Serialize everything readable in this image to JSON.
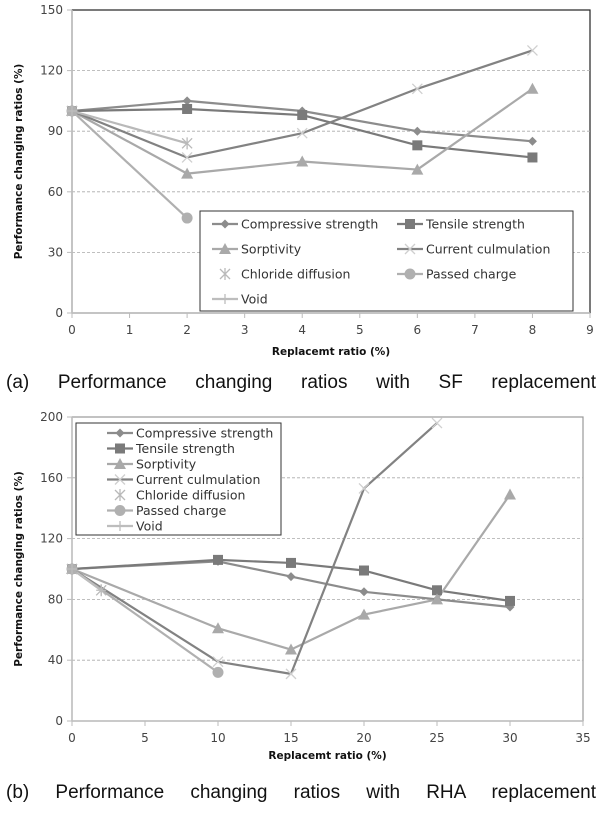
{
  "chart_data": [
    {
      "type": "line",
      "title": "",
      "caption": "(a) Performance changing ratios with SF replacement",
      "xlabel": "Replacemt ratio (%)",
      "ylabel": "Performance changing ratios (%)",
      "xlim": [
        0,
        9
      ],
      "ylim": [
        0,
        150
      ],
      "xticks": [
        0,
        1,
        2,
        3,
        4,
        5,
        6,
        7,
        8,
        9
      ],
      "yticks": [
        0,
        30,
        60,
        90,
        120,
        150
      ],
      "grid": "horizontal-dashed",
      "legend": "bottom-right, 2 columns",
      "series": [
        {
          "name": "Compressive strength",
          "marker": "diamond",
          "color": "#8c8c8c",
          "x": [
            0,
            2,
            4,
            6,
            8
          ],
          "y": [
            100,
            105,
            100,
            90,
            85
          ]
        },
        {
          "name": "Tensile strength",
          "marker": "square",
          "color": "#7a7a7a",
          "x": [
            0,
            2,
            4,
            6,
            8
          ],
          "y": [
            100,
            101,
            98,
            83,
            77
          ]
        },
        {
          "name": "Sorptivity",
          "marker": "triangle",
          "color": "#a9a9a9",
          "x": [
            0,
            2,
            4,
            6,
            8
          ],
          "y": [
            100,
            69,
            75,
            71,
            111
          ]
        },
        {
          "name": "Current culmulation",
          "marker": "x",
          "color": "#828282",
          "x": [
            0,
            2,
            4,
            6,
            8
          ],
          "y": [
            100,
            77,
            89,
            111,
            130
          ]
        },
        {
          "name": "Chloride diffusion",
          "marker": "star",
          "color": "#b9b9b9",
          "x": [
            0,
            2
          ],
          "y": [
            100,
            84
          ]
        },
        {
          "name": "Passed charge",
          "marker": "circle",
          "color": "#b0b0b0",
          "x": [
            0,
            2
          ],
          "y": [
            100,
            47
          ]
        },
        {
          "name": "Void",
          "marker": "plus",
          "color": "#bdbdbd",
          "x": [
            0
          ],
          "y": [
            100
          ]
        }
      ]
    },
    {
      "type": "line",
      "title": "",
      "caption": "(b) Performance changing ratios with RHA replacement",
      "xlabel": "Replacemt ratio (%)",
      "ylabel": "Performance changing ratios (%)",
      "xlim": [
        0,
        35
      ],
      "ylim": [
        0,
        200
      ],
      "xticks": [
        0,
        5,
        10,
        15,
        20,
        25,
        30,
        35
      ],
      "yticks": [
        0,
        40,
        80,
        120,
        160,
        200
      ],
      "grid": "horizontal-dashed",
      "legend": "top-left, 1 column",
      "series": [
        {
          "name": "Compressive strength",
          "marker": "diamond",
          "color": "#8c8c8c",
          "x": [
            0,
            10,
            15,
            20,
            25,
            30
          ],
          "y": [
            100,
            105,
            95,
            85,
            80,
            75
          ]
        },
        {
          "name": "Tensile strength",
          "marker": "square",
          "color": "#7a7a7a",
          "x": [
            0,
            10,
            15,
            20,
            25,
            30
          ],
          "y": [
            100,
            106,
            104,
            99,
            86,
            79
          ]
        },
        {
          "name": "Sorptivity",
          "marker": "triangle",
          "color": "#a9a9a9",
          "x": [
            0,
            10,
            15,
            20,
            25,
            30
          ],
          "y": [
            100,
            61,
            47,
            70,
            80,
            149
          ]
        },
        {
          "name": "Current culmulation",
          "marker": "x",
          "color": "#828282",
          "x": [
            0,
            10,
            15,
            20,
            25
          ],
          "y": [
            100,
            39,
            31,
            153,
            196
          ]
        },
        {
          "name": "Chloride diffusion",
          "marker": "star",
          "color": "#b9b9b9",
          "x": [
            0,
            2
          ],
          "y": [
            100,
            86
          ]
        },
        {
          "name": "Passed charge",
          "marker": "circle",
          "color": "#b0b0b0",
          "x": [
            0,
            10
          ],
          "y": [
            100,
            32
          ]
        },
        {
          "name": "Void",
          "marker": "plus",
          "color": "#bdbdbd",
          "x": [
            0,
            2
          ],
          "y": [
            100,
            86
          ]
        }
      ]
    }
  ]
}
